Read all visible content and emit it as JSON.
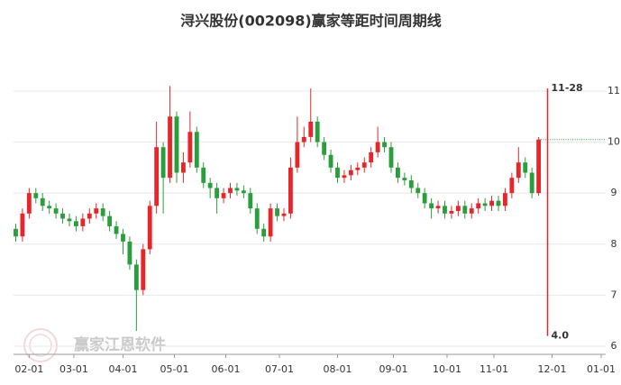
{
  "chart_data": {
    "type": "candlestick",
    "title": "浔兴股份(002098)赢家等距时间周期线",
    "watermark": "赢家江恩软件",
    "x": [
      1,
      4,
      7,
      10,
      13,
      16,
      19,
      22,
      25,
      28,
      31,
      34,
      37,
      40,
      43,
      46,
      49,
      52,
      55,
      58,
      61,
      64,
      67,
      70,
      73,
      76,
      79,
      82,
      85,
      88,
      91,
      94,
      97,
      100,
      103,
      106,
      109,
      112,
      115,
      118,
      121,
      124,
      127,
      130,
      133,
      136,
      139,
      142,
      145,
      148,
      151,
      154,
      157,
      160,
      163,
      166,
      169,
      172,
      175,
      178,
      181,
      184,
      187,
      190,
      193,
      196,
      199,
      202,
      205,
      208,
      211,
      214,
      217,
      220,
      223,
      226,
      229,
      232,
      235
    ],
    "open": [
      8.3,
      8.15,
      8.6,
      9.0,
      8.9,
      8.75,
      8.7,
      8.6,
      8.5,
      8.45,
      8.35,
      8.5,
      8.6,
      8.7,
      8.55,
      8.35,
      8.2,
      8.05,
      7.6,
      7.1,
      7.9,
      8.75,
      9.9,
      9.3,
      10.5,
      9.4,
      9.6,
      10.2,
      9.5,
      9.2,
      9.1,
      8.9,
      9.0,
      9.1,
      9.05,
      9.0,
      8.7,
      8.3,
      8.15,
      8.7,
      8.55,
      8.6,
      9.5,
      10.0,
      10.1,
      10.4,
      10.0,
      9.75,
      9.5,
      9.3,
      9.35,
      9.45,
      9.5,
      9.6,
      9.8,
      10.0,
      9.9,
      9.5,
      9.3,
      9.25,
      9.1,
      9.0,
      8.8,
      8.7,
      8.75,
      8.6,
      8.65,
      8.75,
      8.6,
      8.7,
      8.8,
      8.75,
      8.85,
      8.75,
      9.0,
      9.3,
      9.6,
      9.4,
      9.0
    ],
    "high": [
      8.4,
      8.7,
      9.1,
      9.1,
      9.0,
      8.85,
      8.8,
      8.7,
      8.6,
      8.55,
      8.6,
      8.7,
      8.8,
      8.8,
      8.65,
      8.45,
      8.3,
      8.15,
      7.7,
      8.0,
      8.85,
      10.4,
      10.0,
      11.1,
      10.6,
      9.8,
      10.6,
      10.3,
      9.6,
      9.3,
      9.2,
      9.1,
      9.2,
      9.2,
      9.15,
      9.1,
      8.8,
      8.4,
      8.8,
      8.8,
      8.7,
      9.7,
      10.5,
      10.3,
      11.05,
      10.5,
      10.1,
      9.85,
      9.6,
      9.45,
      9.55,
      9.6,
      9.7,
      9.9,
      10.3,
      10.1,
      10.0,
      9.6,
      9.4,
      9.35,
      9.2,
      9.1,
      8.9,
      8.85,
      8.85,
      8.75,
      8.85,
      8.85,
      8.8,
      8.9,
      8.9,
      8.95,
      8.95,
      9.1,
      9.4,
      9.9,
      9.7,
      9.5,
      10.1
    ],
    "low": [
      8.05,
      8.05,
      8.5,
      8.8,
      8.65,
      8.6,
      8.5,
      8.4,
      8.35,
      8.25,
      8.25,
      8.4,
      8.5,
      8.45,
      8.25,
      8.1,
      7.8,
      7.5,
      6.3,
      7.0,
      7.8,
      8.6,
      8.6,
      9.2,
      9.2,
      9.2,
      9.5,
      9.4,
      9.1,
      8.9,
      8.6,
      8.8,
      8.9,
      8.95,
      8.9,
      8.6,
      8.2,
      8.05,
      8.05,
      8.45,
      8.45,
      8.5,
      9.4,
      9.9,
      10.0,
      9.9,
      9.65,
      9.4,
      9.2,
      9.2,
      9.25,
      9.35,
      9.4,
      9.5,
      9.7,
      9.8,
      9.4,
      9.2,
      9.15,
      9.0,
      8.9,
      8.7,
      8.5,
      8.6,
      8.5,
      8.5,
      8.55,
      8.5,
      8.5,
      8.6,
      8.65,
      8.65,
      8.65,
      8.65,
      8.9,
      9.2,
      9.3,
      8.9,
      8.95
    ],
    "close": [
      8.15,
      8.6,
      9.0,
      8.9,
      8.75,
      8.7,
      8.6,
      8.5,
      8.45,
      8.35,
      8.5,
      8.6,
      8.7,
      8.55,
      8.35,
      8.2,
      8.05,
      7.6,
      7.1,
      7.9,
      8.75,
      9.9,
      9.3,
      10.5,
      9.4,
      9.6,
      10.2,
      9.5,
      9.2,
      9.1,
      8.9,
      9.0,
      9.1,
      9.05,
      9.0,
      8.7,
      8.3,
      8.15,
      8.7,
      8.55,
      8.6,
      9.5,
      10.0,
      10.1,
      10.4,
      10.0,
      9.75,
      9.5,
      9.3,
      9.35,
      9.45,
      9.5,
      9.6,
      9.8,
      10.0,
      9.9,
      9.5,
      9.3,
      9.25,
      9.1,
      9.0,
      8.8,
      8.7,
      8.75,
      8.6,
      8.65,
      8.75,
      8.6,
      8.7,
      8.8,
      8.75,
      8.85,
      8.75,
      9.0,
      9.3,
      9.6,
      9.4,
      9.0,
      10.05
    ],
    "up_color": "#e8262a",
    "down_color": "#2a9d3c",
    "xlim": [
      0,
      265
    ],
    "xticks": [
      {
        "value": 7,
        "label": "02-01"
      },
      {
        "value": 27,
        "label": "03-01"
      },
      {
        "value": 49,
        "label": "04-01"
      },
      {
        "value": 72,
        "label": "05-01"
      },
      {
        "value": 95,
        "label": "06-01"
      },
      {
        "value": 119,
        "label": "07-01"
      },
      {
        "value": 145,
        "label": "08-01"
      },
      {
        "value": 170,
        "label": "09-01"
      },
      {
        "value": 194,
        "label": "10-01"
      },
      {
        "value": 215,
        "label": "11-01"
      },
      {
        "value": 241,
        "label": "12-01"
      },
      {
        "value": 263,
        "label": "01-01"
      }
    ],
    "ylim": [
      5.84,
      11.3
    ],
    "yticks": [
      6,
      7,
      8,
      9,
      10,
      11
    ],
    "grid": true,
    "last_price_line": true,
    "vline": {
      "x": 239,
      "top": 11.05,
      "bottom": 6.2,
      "top_label": "11-28",
      "bottom_label": "4.0",
      "color": "#e8262a"
    }
  }
}
